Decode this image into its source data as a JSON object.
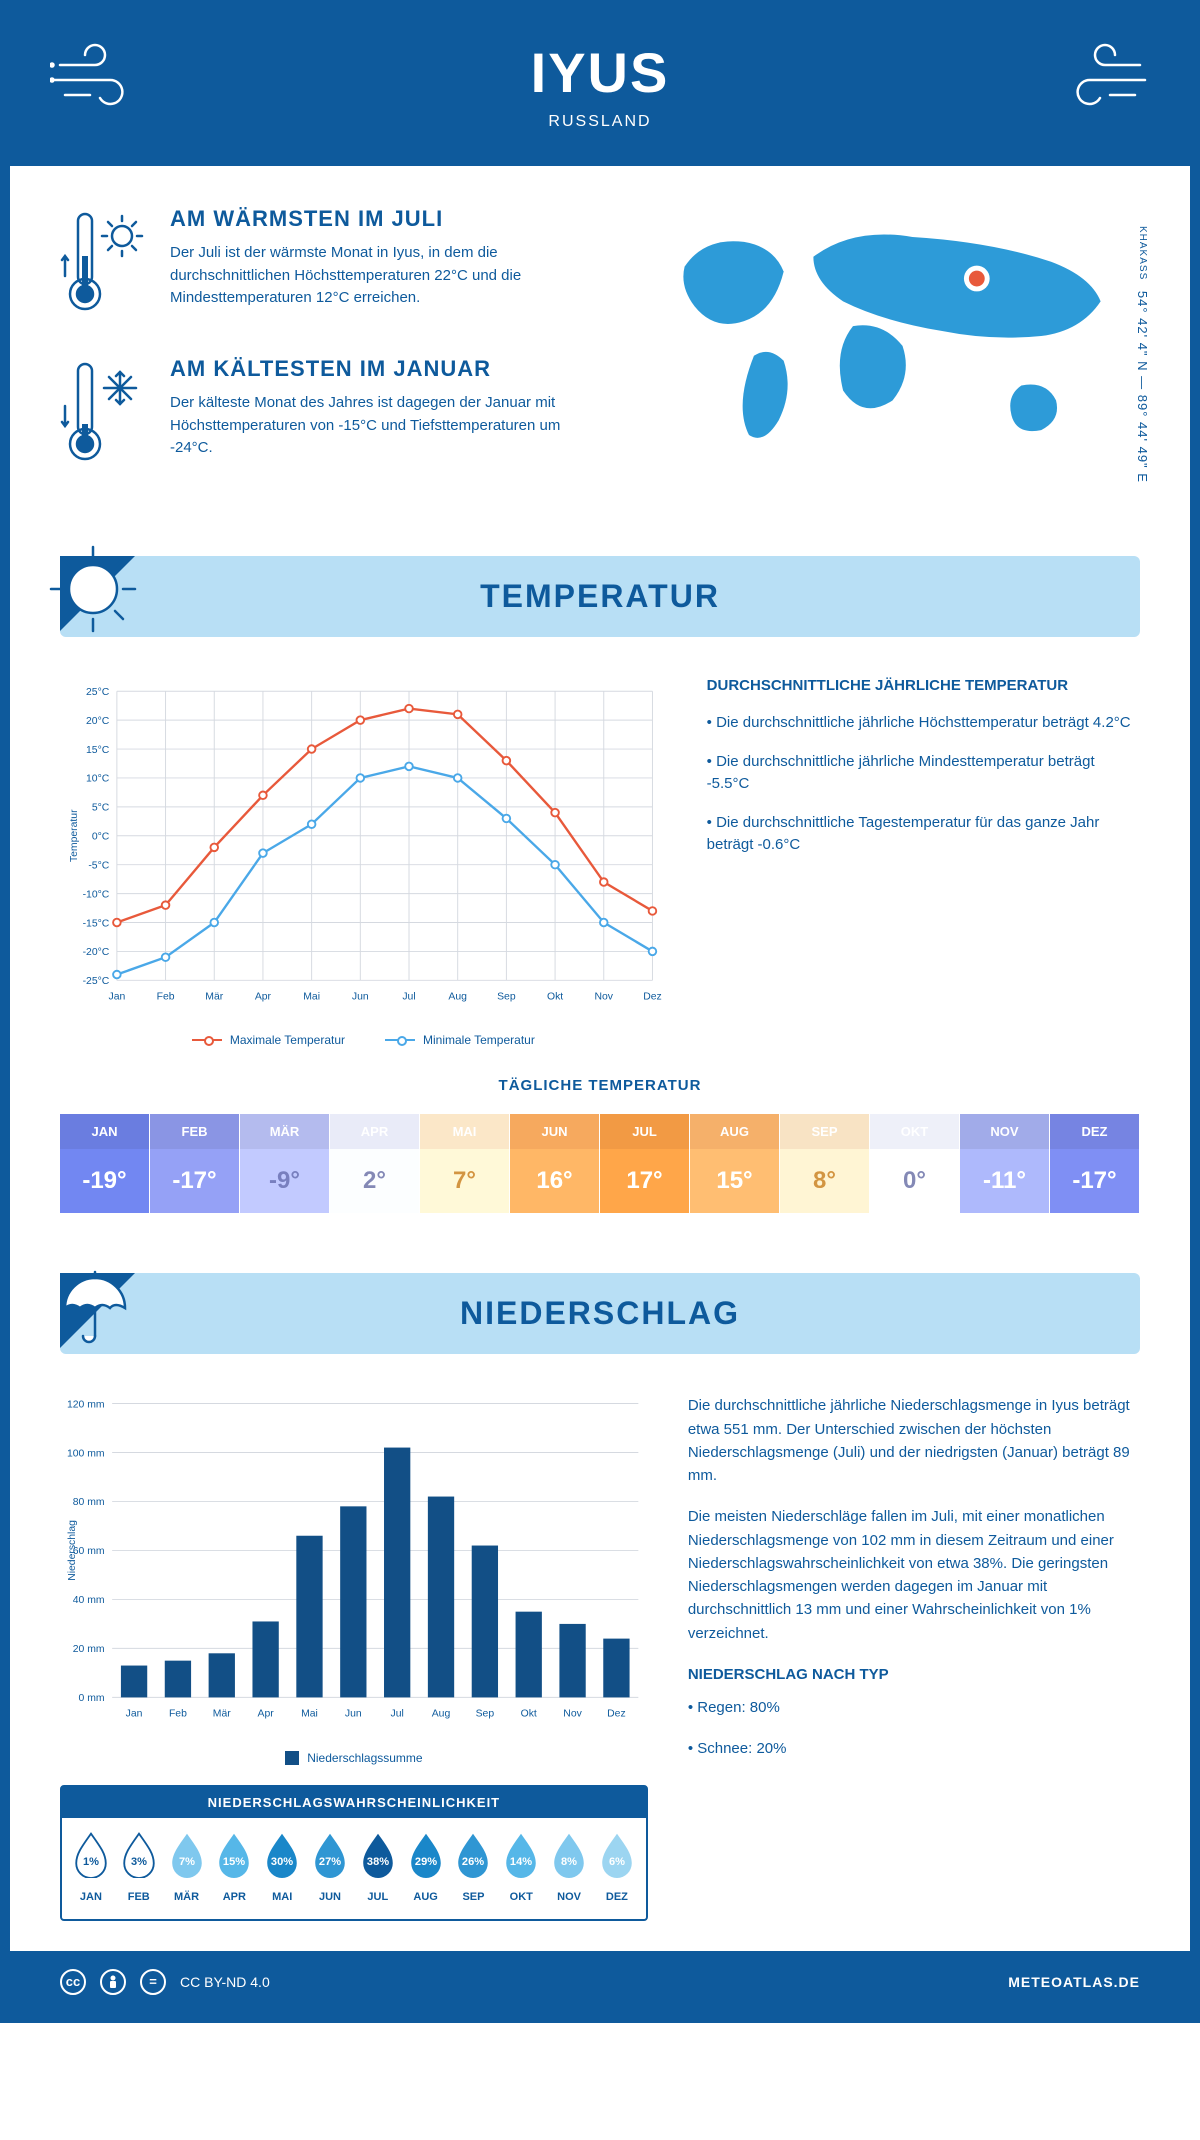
{
  "header": {
    "title": "IYUS",
    "subtitle": "RUSSLAND"
  },
  "coords": {
    "region": "KHAKASS",
    "text": "54° 42' 4\" N — 89° 44' 49\" E"
  },
  "facts": {
    "warm": {
      "title": "AM WÄRMSTEN IM JULI",
      "text": "Der Juli ist der wärmste Monat in Iyus, in dem die durchschnittlichen Höchsttemperaturen 22°C und die Mindesttemperaturen 12°C erreichen."
    },
    "cold": {
      "title": "AM KÄLTESTEN IM JANUAR",
      "text": "Der kälteste Monat des Jahres ist dagegen der Januar mit Höchsttemperaturen von -15°C und Tiefsttemperaturen um -24°C."
    }
  },
  "temperature": {
    "banner": "TEMPERATUR",
    "info_title": "DURCHSCHNITTLICHE JÄHRLICHE TEMPERATUR",
    "bullets": [
      "• Die durchschnittliche jährliche Höchsttemperatur beträgt 4.2°C",
      "• Die durchschnittliche jährliche Mindesttemperatur beträgt -5.5°C",
      "• Die durchschnittliche Tagestemperatur für das ganze Jahr beträgt -0.6°C"
    ],
    "chart": {
      "type": "line",
      "y_axis_label": "Temperatur",
      "ylim": [
        -25,
        25
      ],
      "ytick_step": 5,
      "y_suffix": "°C",
      "months": [
        "Jan",
        "Feb",
        "Mär",
        "Apr",
        "Mai",
        "Jun",
        "Jul",
        "Aug",
        "Sep",
        "Okt",
        "Nov",
        "Dez"
      ],
      "series": [
        {
          "name": "Maximale Temperatur",
          "color": "#e8593b",
          "values": [
            -15,
            -12,
            -2,
            7,
            15,
            20,
            22,
            21,
            13,
            4,
            -8,
            -13
          ]
        },
        {
          "name": "Minimale Temperatur",
          "color": "#4aa8e8",
          "values": [
            -24,
            -21,
            -15,
            -3,
            2,
            10,
            12,
            10,
            3,
            -5,
            -15,
            -20
          ]
        }
      ],
      "grid_color": "#d5d9e0",
      "background_color": "#ffffff",
      "label_fontsize": 11
    },
    "daily_title": "TÄGLICHE TEMPERATUR",
    "daily": {
      "months": [
        "JAN",
        "FEB",
        "MÄR",
        "APR",
        "MAI",
        "JUN",
        "JUL",
        "AUG",
        "SEP",
        "OKT",
        "NOV",
        "DEZ"
      ],
      "values": [
        "-19°",
        "-17°",
        "-9°",
        "2°",
        "7°",
        "16°",
        "17°",
        "15°",
        "8°",
        "0°",
        "-11°",
        "-17°"
      ],
      "bg_colors": [
        "#6a7de0",
        "#8a95e4",
        "#b4bbee",
        "#e9ebf8",
        "#fbe7c8",
        "#f6a95e",
        "#f29a44",
        "#f5b06a",
        "#f8e3c4",
        "#eef0f9",
        "#a1abe9",
        "#7684e2"
      ],
      "text_colors": [
        "#ffffff",
        "#ffffff",
        "#6f76b0",
        "#7a7fa8",
        "#c28a3d",
        "#ffffff",
        "#ffffff",
        "#ffffff",
        "#c28a3d",
        "#7a7fa8",
        "#ffffff",
        "#ffffff"
      ],
      "val_bg_shift": 0.85
    }
  },
  "precip": {
    "banner": "NIEDERSCHLAG",
    "chart": {
      "type": "bar",
      "y_axis_label": "Niederschlag",
      "ylim": [
        0,
        120
      ],
      "ytick_step": 20,
      "y_suffix": " mm",
      "months": [
        "Jan",
        "Feb",
        "Mär",
        "Apr",
        "Mai",
        "Jun",
        "Jul",
        "Aug",
        "Sep",
        "Okt",
        "Nov",
        "Dez"
      ],
      "values": [
        13,
        15,
        18,
        31,
        66,
        78,
        102,
        82,
        62,
        35,
        30,
        24
      ],
      "bar_color": "#124f86",
      "grid_color": "#d5d9e0",
      "legend": "Niederschlagssumme",
      "label_fontsize": 11
    },
    "text1": "Die durchschnittliche jährliche Niederschlagsmenge in Iyus beträgt etwa 551 mm. Der Unterschied zwischen der höchsten Niederschlagsmenge (Juli) und der niedrigsten (Januar) beträgt 89 mm.",
    "text2": "Die meisten Niederschläge fallen im Juli, mit einer monatlichen Niederschlagsmenge von 102 mm in diesem Zeitraum und einer Niederschlagswahrscheinlichkeit von etwa 38%. Die geringsten Niederschlagsmengen werden dagegen im Januar mit durchschnittlich 13 mm und einer Wahrscheinlichkeit von 1% verzeichnet.",
    "type_title": "NIEDERSCHLAG NACH TYP",
    "type_bullets": [
      "• Regen: 80%",
      "• Schnee: 20%"
    ],
    "prob": {
      "title": "NIEDERSCHLAGSWAHRSCHEINLICHKEIT",
      "months": [
        "JAN",
        "FEB",
        "MÄR",
        "APR",
        "MAI",
        "JUN",
        "JUL",
        "AUG",
        "SEP",
        "OKT",
        "NOV",
        "DEZ"
      ],
      "values": [
        "1%",
        "3%",
        "7%",
        "15%",
        "30%",
        "27%",
        "38%",
        "29%",
        "26%",
        "14%",
        "8%",
        "6%"
      ],
      "fills": [
        "#ffffff",
        "#ffffff",
        "#7fc8ee",
        "#56b7e8",
        "#1a87c9",
        "#2f96d3",
        "#0e5a9c",
        "#1a87c9",
        "#2f96d3",
        "#56b7e8",
        "#7fc8ee",
        "#9cd5f1"
      ],
      "text_colors": [
        "#0e5a9c",
        "#0e5a9c",
        "#ffffff",
        "#ffffff",
        "#ffffff",
        "#ffffff",
        "#ffffff",
        "#ffffff",
        "#ffffff",
        "#ffffff",
        "#ffffff",
        "#ffffff"
      ],
      "strokes": [
        "#0e5a9c",
        "#0e5a9c",
        "none",
        "none",
        "none",
        "none",
        "none",
        "none",
        "none",
        "none",
        "none",
        "none"
      ]
    }
  },
  "footer": {
    "license": "CC BY-ND 4.0",
    "site": "METEOATLAS.DE"
  }
}
